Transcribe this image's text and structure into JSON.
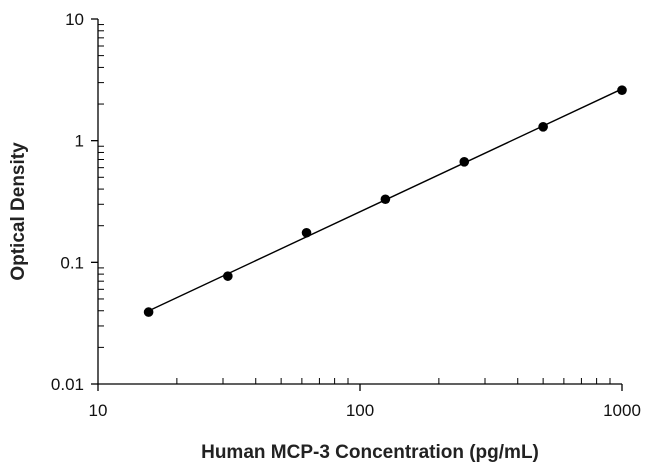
{
  "chart_data": {
    "type": "scatter",
    "title": "",
    "xlabel": "Human MCP-3 Concentration (pg/mL)",
    "ylabel": "Optical Density",
    "x_scale": "log",
    "y_scale": "log",
    "xlim": [
      10,
      1000
    ],
    "ylim": [
      0.01,
      10
    ],
    "x_ticks": [
      10,
      100,
      1000
    ],
    "x_tick_labels": [
      "10",
      "100",
      "1000"
    ],
    "y_ticks": [
      0.01,
      0.1,
      1,
      10
    ],
    "y_tick_labels": [
      "0.01",
      "0.1",
      "1",
      "10"
    ],
    "grid": false,
    "legend": "none",
    "series": [
      {
        "x": [
          15.6,
          31.3,
          62.5,
          125,
          250,
          500,
          1000
        ],
        "y": [
          0.039,
          0.077,
          0.175,
          0.33,
          0.67,
          1.3,
          2.6
        ],
        "marker": "filled-circle",
        "fit_line": "power"
      }
    ],
    "colors": {
      "axis": "#000000",
      "points": "#000000",
      "line": "#000000"
    }
  }
}
